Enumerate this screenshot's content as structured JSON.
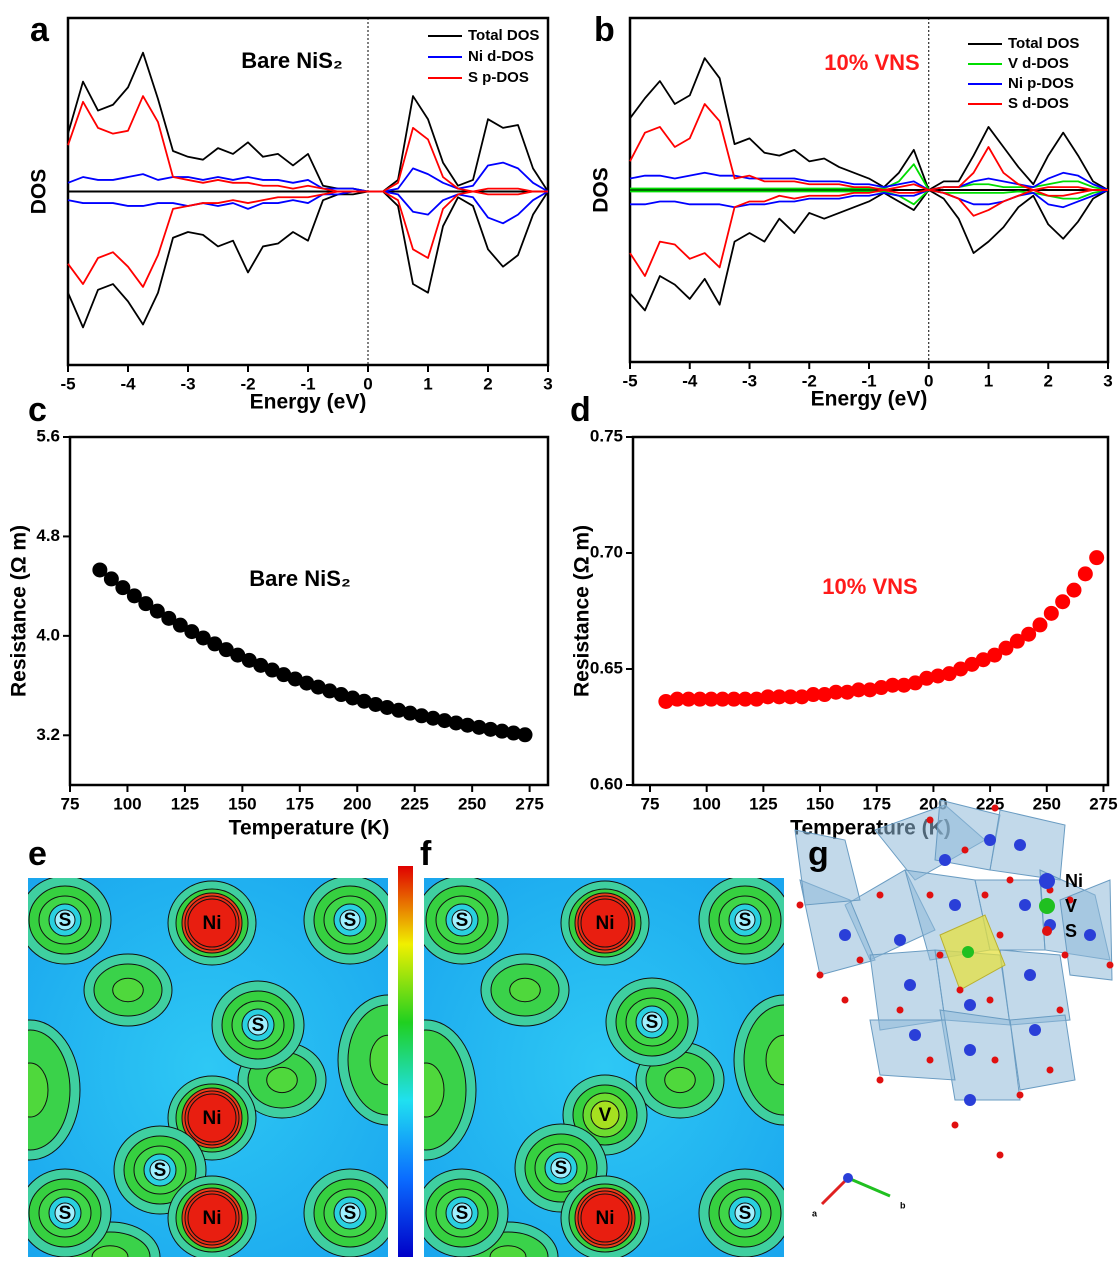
{
  "chart_data": [
    {
      "type": "line",
      "panel_label": "a",
      "annotation": "Bare NiS₂",
      "annotation_color": "#000000",
      "xlabel": "Energy (eV)",
      "ylabel": "DOS",
      "xlim": [
        -5,
        3
      ],
      "xticks": [
        -5,
        -4,
        -3,
        -2,
        -1,
        0,
        1,
        2,
        3
      ],
      "ylim": [
        -6,
        6
      ],
      "vline": 0,
      "x": [
        -5,
        -4.75,
        -4.5,
        -4.25,
        -4,
        -3.75,
        -3.5,
        -3.25,
        -3,
        -2.75,
        -2.5,
        -2.25,
        -2,
        -1.75,
        -1.5,
        -1.25,
        -1,
        -0.75,
        -0.5,
        -0.25,
        0,
        0.25,
        0.5,
        0.75,
        1,
        1.25,
        1.5,
        1.75,
        2,
        2.25,
        2.5,
        2.75,
        3
      ],
      "series": [
        {
          "name": "Total DOS",
          "color": "#000000",
          "values": [
            2.0,
            3.8,
            2.8,
            3.0,
            3.6,
            4.8,
            3.2,
            1.4,
            1.2,
            1.1,
            1.5,
            1.3,
            1.7,
            1.2,
            1.3,
            0.9,
            1.3,
            0.2,
            0.1,
            0.1,
            0.0,
            0.0,
            0.4,
            3.3,
            2.5,
            1.0,
            0.2,
            0.4,
            2.5,
            2.2,
            2.3,
            0.8,
            0.0
          ],
          "values_down": [
            -3.5,
            -4.7,
            -3.4,
            -3.2,
            -3.8,
            -4.6,
            -3.5,
            -1.6,
            -1.4,
            -1.5,
            -1.9,
            -1.7,
            -2.8,
            -1.9,
            -1.8,
            -1.4,
            -1.7,
            -0.3,
            -0.1,
            -0.1,
            0.0,
            0.0,
            -0.5,
            -3.2,
            -3.5,
            -1.2,
            -0.2,
            -0.5,
            -2.0,
            -2.6,
            -2.2,
            -0.8,
            0.0
          ]
        },
        {
          "name": "Ni d-DOS",
          "color": "#0000ff",
          "values": [
            0.3,
            0.5,
            0.4,
            0.4,
            0.5,
            0.6,
            0.4,
            0.5,
            0.5,
            0.4,
            0.5,
            0.4,
            0.5,
            0.4,
            0.4,
            0.3,
            0.4,
            0.1,
            0.1,
            0.1,
            0.0,
            0.0,
            0.1,
            0.8,
            0.6,
            0.3,
            0.1,
            0.2,
            0.9,
            1.0,
            0.8,
            0.3,
            0.0
          ],
          "values_down": [
            -0.3,
            -0.4,
            -0.4,
            -0.4,
            -0.5,
            -0.5,
            -0.4,
            -0.4,
            -0.5,
            -0.4,
            -0.5,
            -0.4,
            -0.6,
            -0.4,
            -0.4,
            -0.3,
            -0.4,
            -0.1,
            -0.1,
            0.0,
            0.0,
            0.0,
            -0.1,
            -0.7,
            -0.8,
            -0.3,
            -0.1,
            -0.2,
            -0.9,
            -1.1,
            -0.8,
            -0.3,
            0.0
          ]
        },
        {
          "name": "S p-DOS",
          "color": "#ff0000",
          "values": [
            1.6,
            3.1,
            2.2,
            2.0,
            2.1,
            3.3,
            2.4,
            0.5,
            0.4,
            0.3,
            0.4,
            0.3,
            0.3,
            0.2,
            0.2,
            0.1,
            0.2,
            0.1,
            0.0,
            0.0,
            0.0,
            0.0,
            0.3,
            2.2,
            1.8,
            0.5,
            0.1,
            0.0,
            0.1,
            0.1,
            0.1,
            0.0,
            0.0
          ],
          "values_down": [
            -2.5,
            -3.2,
            -2.3,
            -2.1,
            -2.6,
            -3.3,
            -2.2,
            -0.6,
            -0.5,
            -0.4,
            -0.4,
            -0.3,
            -0.4,
            -0.3,
            -0.2,
            -0.2,
            -0.2,
            -0.1,
            0.0,
            0.0,
            0.0,
            0.0,
            -0.3,
            -2.0,
            -2.3,
            -0.6,
            -0.1,
            0.0,
            -0.1,
            -0.1,
            -0.1,
            0.0,
            0.0
          ]
        }
      ]
    },
    {
      "type": "line",
      "panel_label": "b",
      "annotation": "10% VNS",
      "annotation_color": "#ff1a1a",
      "xlabel": "Energy (eV)",
      "ylabel": "DOS",
      "xlim": [
        -5,
        3
      ],
      "xticks": [
        -5,
        -4,
        -3,
        -2,
        -1,
        0,
        1,
        2,
        3
      ],
      "ylim": [
        -6,
        6
      ],
      "vline": 0,
      "x": [
        -5,
        -4.75,
        -4.5,
        -4.25,
        -4,
        -3.75,
        -3.5,
        -3.25,
        -3,
        -2.75,
        -2.5,
        -2.25,
        -2,
        -1.75,
        -1.5,
        -1.25,
        -1,
        -0.75,
        -0.5,
        -0.25,
        0,
        0.25,
        0.5,
        0.75,
        1,
        1.25,
        1.5,
        1.75,
        2,
        2.25,
        2.5,
        2.75,
        3
      ],
      "series": [
        {
          "name": "Total DOS",
          "color": "#000000",
          "values": [
            2.5,
            3.2,
            3.8,
            3.0,
            3.3,
            4.6,
            3.9,
            1.6,
            1.8,
            1.3,
            1.2,
            1.4,
            1.0,
            1.1,
            0.8,
            0.6,
            0.4,
            0.1,
            0.6,
            1.4,
            0.0,
            0.3,
            0.3,
            1.2,
            2.2,
            1.5,
            0.8,
            0.2,
            1.2,
            2.0,
            1.2,
            0.3,
            0.0
          ],
          "values_down": [
            -3.6,
            -4.2,
            -3.0,
            -3.3,
            -3.8,
            -3.1,
            -4.0,
            -1.8,
            -1.5,
            -1.8,
            -1.0,
            -1.5,
            -0.8,
            -1.0,
            -0.8,
            -0.6,
            -0.4,
            -0.1,
            -0.4,
            -0.7,
            0.0,
            -0.3,
            -1.0,
            -2.2,
            -1.8,
            -1.3,
            -0.6,
            -0.2,
            -1.2,
            -1.7,
            -1.1,
            -0.3,
            0.0
          ]
        },
        {
          "name": "V d-DOS",
          "color": "#00dd00",
          "values": [
            0.05,
            0.05,
            0.05,
            0.05,
            0.05,
            0.05,
            0.05,
            0.05,
            0.05,
            0.05,
            0.05,
            0.05,
            0.05,
            0.05,
            0.05,
            0.05,
            0.05,
            0.05,
            0.3,
            0.9,
            0.0,
            0.1,
            0.1,
            0.2,
            0.2,
            0.1,
            0.1,
            0.1,
            0.2,
            0.3,
            0.3,
            0.1,
            0.0
          ],
          "values_down": [
            -0.05,
            -0.05,
            -0.05,
            -0.05,
            -0.05,
            -0.05,
            -0.05,
            -0.05,
            -0.05,
            -0.05,
            -0.05,
            -0.05,
            -0.05,
            -0.05,
            -0.05,
            -0.05,
            -0.05,
            -0.05,
            -0.2,
            -0.5,
            0.0,
            -0.1,
            -0.1,
            -0.1,
            -0.1,
            -0.1,
            -0.05,
            -0.1,
            -0.2,
            -0.3,
            -0.3,
            -0.1,
            0.0
          ]
        },
        {
          "name": "Ni p-DOS",
          "color": "#0000ff",
          "values": [
            0.4,
            0.5,
            0.5,
            0.4,
            0.5,
            0.6,
            0.5,
            0.5,
            0.4,
            0.4,
            0.4,
            0.4,
            0.3,
            0.3,
            0.3,
            0.2,
            0.2,
            0.1,
            0.2,
            0.3,
            0.0,
            0.1,
            0.1,
            0.3,
            0.4,
            0.3,
            0.2,
            0.1,
            0.4,
            0.6,
            0.5,
            0.2,
            0.0
          ],
          "values_down": [
            -0.5,
            -0.5,
            -0.4,
            -0.4,
            -0.5,
            -0.5,
            -0.5,
            -0.6,
            -0.5,
            -0.5,
            -0.4,
            -0.4,
            -0.3,
            -0.3,
            -0.3,
            -0.2,
            -0.2,
            -0.1,
            -0.2,
            -0.2,
            0.0,
            -0.1,
            -0.3,
            -0.5,
            -0.5,
            -0.4,
            -0.2,
            -0.1,
            -0.5,
            -0.6,
            -0.4,
            -0.2,
            0.0
          ]
        },
        {
          "name": "S d-DOS",
          "color": "#ff0000",
          "values": [
            1.0,
            2.0,
            2.2,
            1.5,
            1.8,
            3.0,
            2.4,
            0.4,
            0.5,
            0.3,
            0.3,
            0.3,
            0.2,
            0.2,
            0.2,
            0.1,
            0.1,
            0.0,
            0.1,
            0.2,
            0.0,
            0.1,
            0.1,
            0.6,
            1.5,
            0.6,
            0.2,
            0.0,
            0.1,
            0.1,
            0.1,
            0.0,
            0.0
          ],
          "values_down": [
            -2.2,
            -3.0,
            -1.8,
            -1.9,
            -2.4,
            -2.2,
            -2.7,
            -0.6,
            -0.4,
            -0.4,
            -0.2,
            -0.3,
            -0.2,
            -0.2,
            -0.2,
            -0.1,
            -0.1,
            0.0,
            -0.1,
            -0.1,
            0.0,
            -0.1,
            -0.3,
            -0.9,
            -0.7,
            -0.4,
            -0.2,
            0.0,
            -0.2,
            -0.2,
            -0.1,
            0.0,
            0.0
          ]
        }
      ]
    },
    {
      "type": "scatter",
      "panel_label": "c",
      "annotation": "Bare NiS₂",
      "annotation_color": "#000000",
      "color": "#000000",
      "xlabel": "Temperature (K)",
      "ylabel": "Resistance (Ω m)",
      "xlim": [
        75,
        283
      ],
      "xticks": [
        75,
        100,
        125,
        150,
        175,
        200,
        225,
        250,
        275
      ],
      "ylim": [
        2.8,
        5.6
      ],
      "yticks": [
        3.2,
        {
          "value": 4,
          "label": "4.0"
        },
        4.8,
        5.6
      ],
      "x": [
        88,
        93,
        98,
        103,
        108,
        113,
        118,
        123,
        128,
        133,
        138,
        143,
        148,
        153,
        158,
        163,
        168,
        173,
        178,
        183,
        188,
        193,
        198,
        203,
        208,
        213,
        218,
        223,
        228,
        233,
        238,
        243,
        248,
        253,
        258,
        263,
        268,
        273
      ],
      "values": [
        4.53,
        4.458,
        4.388,
        4.322,
        4.259,
        4.199,
        4.141,
        4.086,
        4.034,
        3.983,
        3.935,
        3.889,
        3.845,
        3.803,
        3.763,
        3.725,
        3.688,
        3.653,
        3.62,
        3.588,
        3.557,
        3.528,
        3.5,
        3.474,
        3.448,
        3.424,
        3.401,
        3.378,
        3.357,
        3.337,
        3.318,
        3.299,
        3.281,
        3.264,
        3.248,
        3.233,
        3.218,
        3.204
      ]
    },
    {
      "type": "scatter",
      "panel_label": "d",
      "annotation": "10% VNS",
      "annotation_color": "#ff1a1a",
      "color": "#ff0000",
      "xlabel": "Temperature (K)",
      "ylabel": "Resistance (Ω m)",
      "xlim": [
        67.5,
        277
      ],
      "xticks": [
        75,
        100,
        125,
        150,
        175,
        200,
        225,
        250,
        275
      ],
      "ylim": [
        0.6,
        0.75
      ],
      "yticks": [
        {
          "value": 0.6,
          "label": "0.60"
        },
        0.65,
        {
          "value": 0.7,
          "label": "0.70"
        },
        0.75
      ],
      "x": [
        82,
        87,
        92,
        97,
        102,
        107,
        112,
        117,
        122,
        127,
        132,
        137,
        142,
        147,
        152,
        157,
        162,
        167,
        172,
        177,
        182,
        187,
        192,
        197,
        202,
        207,
        212,
        217,
        222,
        227,
        232,
        237,
        242,
        247,
        252,
        257,
        262,
        267,
        272
      ],
      "values": [
        0.636,
        0.637,
        0.637,
        0.637,
        0.637,
        0.637,
        0.637,
        0.637,
        0.637,
        0.638,
        0.638,
        0.638,
        0.638,
        0.639,
        0.639,
        0.64,
        0.64,
        0.641,
        0.641,
        0.642,
        0.643,
        0.643,
        0.644,
        0.646,
        0.647,
        0.648,
        0.65,
        0.652,
        0.654,
        0.656,
        0.659,
        0.662,
        0.665,
        0.669,
        0.674,
        0.679,
        0.684,
        0.691,
        0.698
      ]
    }
  ],
  "maps": [
    {
      "panel_label": "e",
      "atoms": [
        "S",
        "Ni",
        "S",
        "Ni",
        "S",
        "S",
        "Ni",
        "S",
        "S"
      ]
    },
    {
      "panel_label": "f",
      "atoms": [
        "S",
        "Ni",
        "S",
        "V",
        "S",
        "S",
        "Ni",
        "S",
        "S"
      ]
    }
  ],
  "structure": {
    "panel_label": "g",
    "legend": [
      "Ni",
      "V",
      "S"
    ],
    "axes": [
      "a",
      "b"
    ]
  }
}
